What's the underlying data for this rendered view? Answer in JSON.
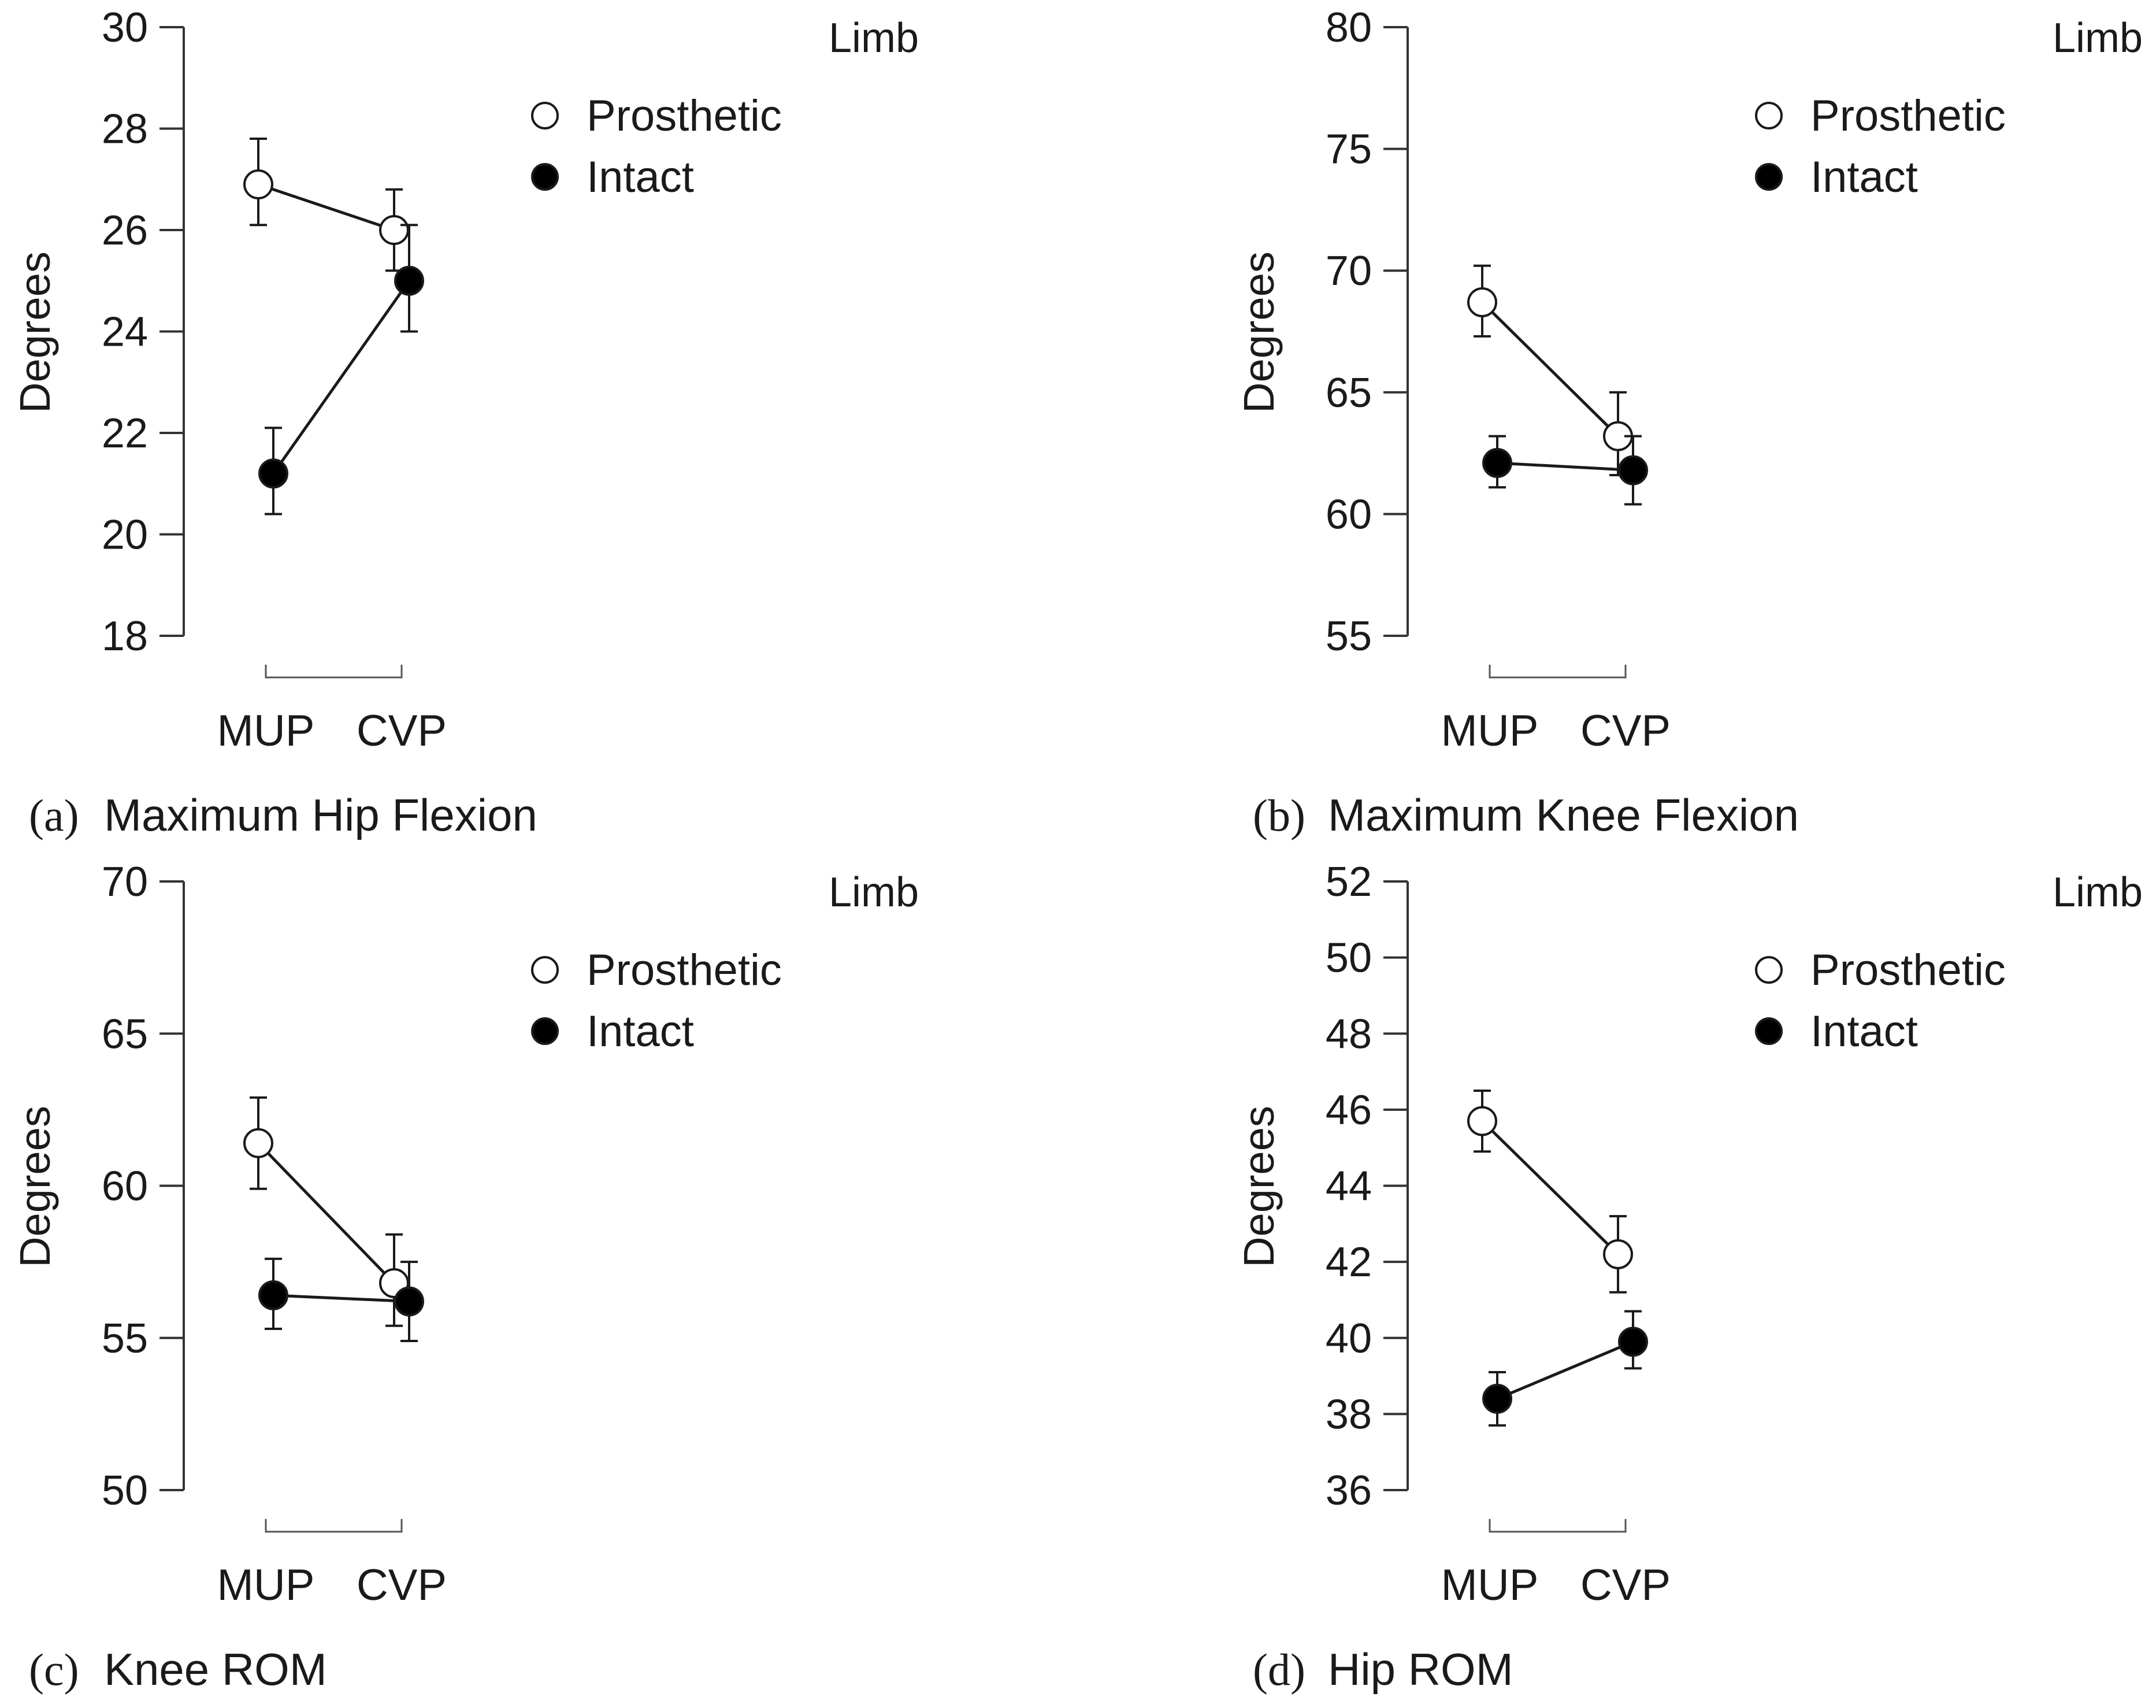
{
  "chart_data": [
    {
      "type": "line",
      "panel_letter": "a",
      "title": "Maximum Hip Flexion",
      "ylabel": "Degrees",
      "xlabel": "",
      "categories": [
        "MUP",
        "CVP"
      ],
      "ylim": [
        18,
        30
      ],
      "yticks": [
        18,
        20,
        22,
        24,
        26,
        28,
        30
      ],
      "ytick_labels": [
        "18",
        "20",
        "22",
        "24",
        "26",
        "28",
        "30"
      ],
      "legend_title": "Limb",
      "legend_position": "top-right",
      "grid": false,
      "series": [
        {
          "name": "Prosthetic",
          "marker": "open-circle",
          "values": [
            26.9,
            26.0
          ],
          "err_low": [
            26.1,
            25.2
          ],
          "err_high": [
            27.8,
            26.8
          ]
        },
        {
          "name": "Intact",
          "marker": "filled-circle",
          "values": [
            21.2,
            25.0
          ],
          "err_low": [
            20.4,
            24.0
          ],
          "err_high": [
            22.1,
            26.1
          ]
        }
      ]
    },
    {
      "type": "line",
      "panel_letter": "b",
      "title": "Maximum Knee Flexion",
      "ylabel": "Degrees",
      "xlabel": "",
      "categories": [
        "MUP",
        "CVP"
      ],
      "ylim": [
        55,
        80
      ],
      "yticks": [
        55,
        60,
        65,
        70,
        75,
        80
      ],
      "ytick_labels": [
        "55",
        "60",
        "65",
        "70",
        "75",
        "80"
      ],
      "legend_title": "Limb",
      "legend_position": "top-right",
      "grid": false,
      "series": [
        {
          "name": "Prosthetic",
          "marker": "open-circle",
          "values": [
            68.7,
            63.2
          ],
          "err_low": [
            67.3,
            61.6
          ],
          "err_high": [
            70.2,
            65.0
          ]
        },
        {
          "name": "Intact",
          "marker": "filled-circle",
          "values": [
            62.1,
            61.8
          ],
          "err_low": [
            61.1,
            60.4
          ],
          "err_high": [
            63.2,
            63.2
          ]
        }
      ]
    },
    {
      "type": "line",
      "panel_letter": "c",
      "title": "Knee ROM",
      "ylabel": "Degrees",
      "xlabel": "",
      "categories": [
        "MUP",
        "CVP"
      ],
      "ylim": [
        50,
        70
      ],
      "yticks": [
        50,
        55,
        60,
        65,
        70
      ],
      "ytick_labels": [
        "50",
        "55",
        "60",
        "65",
        "70"
      ],
      "legend_title": "Limb",
      "legend_position": "top-right",
      "grid": false,
      "series": [
        {
          "name": "Prosthetic",
          "marker": "open-circle",
          "values": [
            61.4,
            56.8
          ],
          "err_low": [
            59.9,
            55.4
          ],
          "err_high": [
            62.9,
            58.4
          ]
        },
        {
          "name": "Intact",
          "marker": "filled-circle",
          "values": [
            56.4,
            56.2
          ],
          "err_low": [
            55.3,
            54.9
          ],
          "err_high": [
            57.6,
            57.5
          ]
        }
      ]
    },
    {
      "type": "line",
      "panel_letter": "d",
      "title": "Hip ROM",
      "ylabel": "Degrees",
      "xlabel": "",
      "categories": [
        "MUP",
        "CVP"
      ],
      "ylim": [
        36,
        52
      ],
      "yticks": [
        36,
        38,
        40,
        42,
        44,
        46,
        48,
        50,
        52
      ],
      "ytick_labels": [
        "36",
        "38",
        "40",
        "42",
        "44",
        "46",
        "48",
        "50",
        "52"
      ],
      "legend_title": "Limb",
      "legend_position": "top-right",
      "grid": false,
      "series": [
        {
          "name": "Prosthetic",
          "marker": "open-circle",
          "values": [
            45.7,
            42.2
          ],
          "err_low": [
            44.9,
            41.2
          ],
          "err_high": [
            46.5,
            43.2
          ]
        },
        {
          "name": "Intact",
          "marker": "filled-circle",
          "values": [
            38.4,
            39.9
          ],
          "err_low": [
            37.7,
            39.2
          ],
          "err_high": [
            39.1,
            40.7
          ]
        }
      ]
    }
  ]
}
